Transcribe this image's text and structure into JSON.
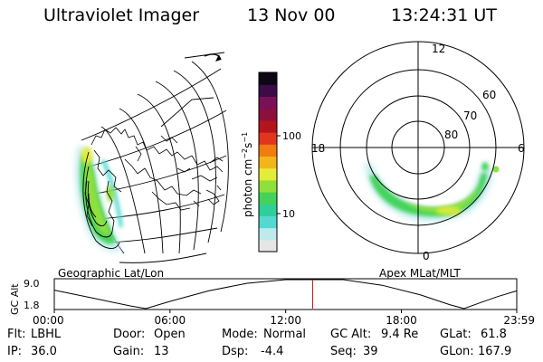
{
  "header": {
    "title": "Ultraviolet Imager",
    "date": "13 Nov 00",
    "time": "13:24:31 UT"
  },
  "left_panel": {
    "caption": "Geographic Lat/Lon"
  },
  "right_panel": {
    "caption": "Apex MLat/MLT",
    "lat_labels": [
      "80",
      "70",
      "60"
    ],
    "mlt_labels": {
      "top": "12",
      "left": "18",
      "right": "6",
      "bottom": "0"
    }
  },
  "colorbar": {
    "label_main": "photon cm",
    "label_exp1": "−2",
    "label_s": "s",
    "label_exp2": "−1",
    "ticks": [
      "100",
      "10"
    ],
    "colors": [
      "#e6e6e6",
      "#bfe9ec",
      "#55d8d2",
      "#2fcf9a",
      "#43d35c",
      "#8fe03c",
      "#e4ec3a",
      "#f4b51a",
      "#ef7d10",
      "#e2361c",
      "#b5141c",
      "#8c0f3c",
      "#7a1055",
      "#3d0b48",
      "#0c0616"
    ]
  },
  "chart_data": {
    "type": "line",
    "title": "",
    "xlabel": "",
    "ylabel": "GC Alt",
    "x_tick_labels": [
      "00:00",
      "06:00",
      "12:00",
      "18:00",
      "23:59"
    ],
    "y_tick_labels": [
      "9.0",
      "1.8"
    ],
    "ylim": [
      1.8,
      9.0
    ],
    "current_time": "13:24",
    "series": [
      {
        "x": [
          "00:00",
          "02:00",
          "04:00",
          "04:45",
          "06:00",
          "08:00",
          "10:00",
          "12:00",
          "13:25",
          "15:00",
          "17:00",
          "19:00",
          "20:30",
          "21:15",
          "22:00",
          "23:00",
          "23:59"
        ],
        "y": [
          6.4,
          4.4,
          2.4,
          1.8,
          3.6,
          6.2,
          8.1,
          9.1,
          9.4,
          9.0,
          7.6,
          5.2,
          2.8,
          1.8,
          3.1,
          4.8,
          6.2
        ]
      }
    ]
  },
  "stats": {
    "flt_label": "Flt:",
    "flt_value": "LBHL",
    "ip_label": "IP:",
    "ip_value": "36.0",
    "door_label": "Door:",
    "door_value": "Open",
    "gain_label": "Gain:",
    "gain_value": "13",
    "mode_label": "Mode:",
    "mode_value": "Normal",
    "dsp_label": "Dsp:",
    "dsp_value": "-4.4",
    "gcalt_label": "GC Alt:",
    "gcalt_value": "9.4 Re",
    "seq_label": "Seq:",
    "seq_value": "39",
    "glat_label": "GLat:",
    "glat_value": "61.8",
    "glon_label": "GLon:",
    "glon_value": "167.9"
  }
}
